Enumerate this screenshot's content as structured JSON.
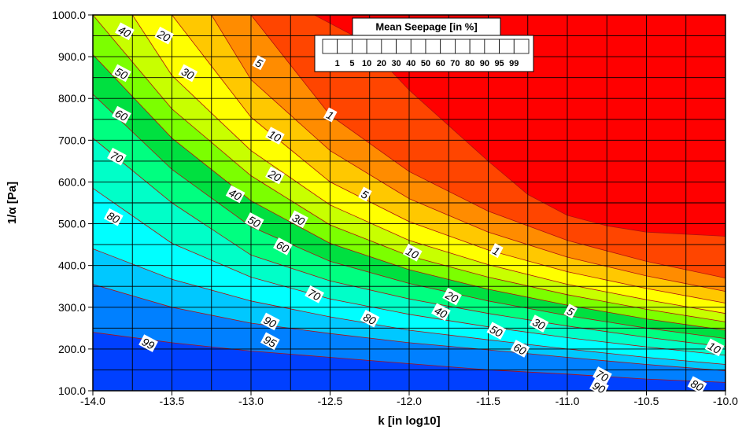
{
  "chart_data": {
    "type": "heatmap",
    "title": "",
    "xlabel": "k  [in log10]",
    "ylabel": "1/α [Pa]",
    "xlim": [
      -14.0,
      -10.0
    ],
    "ylim": [
      100.0,
      1000.0
    ],
    "x_ticks": [
      "-14.0",
      "-13.5",
      "-13.0",
      "-12.5",
      "-12.0",
      "-11.5",
      "-11.0",
      "-10.5",
      "-10.0"
    ],
    "y_ticks": [
      "100.0",
      "200.0",
      "300.0",
      "400.0",
      "500.0",
      "600.0",
      "700.0",
      "800.0",
      "900.0",
      "1000.0"
    ],
    "grid": true,
    "legend": {
      "title": "Mean Seepage [in %]",
      "placement": "top-center",
      "levels": [
        "1",
        "5",
        "10",
        "20",
        "30",
        "40",
        "50",
        "60",
        "70",
        "80",
        "90",
        "95",
        "99"
      ]
    },
    "colors": {
      "above_1": "#ff0000",
      "1_5": "#ff4500",
      "5_10": "#ff8c00",
      "10_20": "#ffc800",
      "20_30": "#ffff00",
      "30_40": "#c8ff00",
      "40_50": "#7cff00",
      "50_60": "#00e040",
      "60_70": "#00ff80",
      "70_80": "#00ffc8",
      "80_90": "#00ffff",
      "90_95": "#00c8ff",
      "95_99": "#0080ff",
      "99_100": "#0040ff",
      "lowest": "#0000e6",
      "contour_line": "#b01010"
    },
    "contours": [
      {
        "level": "99",
        "points": [
          [
            -14.0,
            240
          ],
          [
            -13.5,
            215
          ],
          [
            -13.0,
            195
          ],
          [
            -12.5,
            180
          ],
          [
            -12.0,
            165
          ],
          [
            -11.5,
            150
          ],
          [
            -11.0,
            140
          ],
          [
            -10.5,
            128
          ],
          [
            -10.0,
            120
          ]
        ]
      },
      {
        "level": "95",
        "points": [
          [
            -14.0,
            355
          ],
          [
            -13.5,
            300
          ],
          [
            -13.0,
            262
          ],
          [
            -12.5,
            237
          ],
          [
            -12.0,
            215
          ],
          [
            -11.5,
            198
          ],
          [
            -11.0,
            180
          ],
          [
            -10.5,
            163
          ],
          [
            -10.0,
            148
          ]
        ]
      },
      {
        "level": "90",
        "points": [
          [
            -14.0,
            440
          ],
          [
            -13.5,
            367
          ],
          [
            -13.0,
            315
          ],
          [
            -12.5,
            277
          ],
          [
            -12.0,
            245
          ],
          [
            -11.5,
            222
          ],
          [
            -11.0,
            200
          ],
          [
            -10.5,
            180
          ],
          [
            -10.0,
            163
          ]
        ]
      },
      {
        "level": "80",
        "points": [
          [
            -14.0,
            585
          ],
          [
            -13.5,
            453
          ],
          [
            -13.0,
            372
          ],
          [
            -12.5,
            320
          ],
          [
            -12.0,
            283
          ],
          [
            -11.5,
            253
          ],
          [
            -11.0,
            227
          ],
          [
            -10.5,
            205
          ],
          [
            -10.0,
            185
          ]
        ]
      },
      {
        "level": "70",
        "points": [
          [
            -14.0,
            705
          ],
          [
            -13.5,
            550
          ],
          [
            -13.0,
            425
          ],
          [
            -12.5,
            363
          ],
          [
            -12.0,
            320
          ],
          [
            -11.5,
            285
          ],
          [
            -11.0,
            255
          ],
          [
            -10.5,
            228
          ],
          [
            -10.0,
            205
          ]
        ]
      },
      {
        "level": "60",
        "points": [
          [
            -14.0,
            810
          ],
          [
            -13.5,
            630
          ],
          [
            -13.0,
            493
          ],
          [
            -12.5,
            410
          ],
          [
            -12.0,
            357
          ],
          [
            -11.5,
            315
          ],
          [
            -11.0,
            280
          ],
          [
            -10.5,
            250
          ],
          [
            -10.0,
            225
          ]
        ]
      },
      {
        "level": "50",
        "points": [
          [
            -14.0,
            905
          ],
          [
            -13.5,
            705
          ],
          [
            -13.0,
            555
          ],
          [
            -12.5,
            453
          ],
          [
            -12.0,
            390
          ],
          [
            -11.5,
            343
          ],
          [
            -11.0,
            305
          ],
          [
            -10.5,
            272
          ],
          [
            -10.0,
            245
          ]
        ]
      },
      {
        "level": "40",
        "points": [
          [
            -14.0,
            1000
          ],
          [
            -13.5,
            775
          ],
          [
            -13.0,
            615
          ],
          [
            -12.5,
            497
          ],
          [
            -12.0,
            423
          ],
          [
            -11.5,
            372
          ],
          [
            -11.0,
            330
          ],
          [
            -10.5,
            295
          ],
          [
            -10.0,
            265
          ]
        ]
      },
      {
        "level": "30",
        "points": [
          [
            -13.75,
            1000
          ],
          [
            -13.5,
            855
          ],
          [
            -13.0,
            675
          ],
          [
            -12.5,
            545
          ],
          [
            -12.0,
            460
          ],
          [
            -11.5,
            402
          ],
          [
            -11.0,
            355
          ],
          [
            -10.5,
            318
          ],
          [
            -10.0,
            285
          ]
        ]
      },
      {
        "level": "20",
        "points": [
          [
            -13.5,
            1000
          ],
          [
            -13.0,
            755
          ],
          [
            -12.5,
            600
          ],
          [
            -12.0,
            505
          ],
          [
            -11.5,
            437
          ],
          [
            -11.0,
            385
          ],
          [
            -10.5,
            345
          ],
          [
            -10.0,
            310
          ]
        ]
      },
      {
        "level": "10",
        "points": [
          [
            -13.25,
            1000
          ],
          [
            -13.0,
            845
          ],
          [
            -12.5,
            675
          ],
          [
            -12.0,
            560
          ],
          [
            -11.5,
            480
          ],
          [
            -11.0,
            420
          ],
          [
            -10.5,
            375
          ],
          [
            -10.0,
            338
          ]
        ]
      },
      {
        "level": "5",
        "points": [
          [
            -13.0,
            1000
          ],
          [
            -12.5,
            760
          ],
          [
            -12.0,
            625
          ],
          [
            -11.5,
            530
          ],
          [
            -11.0,
            460
          ],
          [
            -10.5,
            410
          ],
          [
            -10.0,
            370
          ]
        ]
      },
      {
        "level": "1",
        "points": [
          [
            -12.6,
            1000
          ],
          [
            -12.3,
            940
          ],
          [
            -12.0,
            820
          ],
          [
            -11.5,
            650
          ],
          [
            -11.25,
            570
          ],
          [
            -11.0,
            520
          ],
          [
            -10.75,
            495
          ],
          [
            -10.5,
            480
          ],
          [
            -10.0,
            470
          ]
        ]
      }
    ],
    "contour_labels": [
      {
        "text": "40",
        "x": -13.8,
        "y": 960
      },
      {
        "text": "20",
        "x": -13.55,
        "y": 950
      },
      {
        "text": "5",
        "x": -12.95,
        "y": 885
      },
      {
        "text": "30",
        "x": -13.4,
        "y": 860
      },
      {
        "text": "50",
        "x": -13.82,
        "y": 860
      },
      {
        "text": "1",
        "x": -12.5,
        "y": 760
      },
      {
        "text": "60",
        "x": -13.82,
        "y": 760
      },
      {
        "text": "10",
        "x": -12.85,
        "y": 710
      },
      {
        "text": "70",
        "x": -13.85,
        "y": 660
      },
      {
        "text": "20",
        "x": -12.85,
        "y": 615
      },
      {
        "text": "40",
        "x": -13.1,
        "y": 570
      },
      {
        "text": "5",
        "x": -12.28,
        "y": 570
      },
      {
        "text": "80",
        "x": -13.87,
        "y": 515
      },
      {
        "text": "30",
        "x": -12.7,
        "y": 510
      },
      {
        "text": "50",
        "x": -12.98,
        "y": 505
      },
      {
        "text": "60",
        "x": -12.8,
        "y": 445
      },
      {
        "text": "10",
        "x": -11.98,
        "y": 430
      },
      {
        "text": "1",
        "x": -11.45,
        "y": 435
      },
      {
        "text": "70",
        "x": -12.6,
        "y": 330
      },
      {
        "text": "20",
        "x": -11.73,
        "y": 325
      },
      {
        "text": "5",
        "x": -10.98,
        "y": 290
      },
      {
        "text": "40",
        "x": -11.8,
        "y": 288
      },
      {
        "text": "80",
        "x": -12.25,
        "y": 272
      },
      {
        "text": "90",
        "x": -12.88,
        "y": 265
      },
      {
        "text": "30",
        "x": -11.18,
        "y": 260
      },
      {
        "text": "50",
        "x": -11.45,
        "y": 243
      },
      {
        "text": "95",
        "x": -12.88,
        "y": 218
      },
      {
        "text": "99",
        "x": -13.65,
        "y": 213
      },
      {
        "text": "60",
        "x": -11.3,
        "y": 200
      },
      {
        "text": "10",
        "x": -10.07,
        "y": 203
      },
      {
        "text": "70",
        "x": -10.78,
        "y": 136
      },
      {
        "text": "90",
        "x": -10.8,
        "y": 108
      },
      {
        "text": "80",
        "x": -10.18,
        "y": 113
      }
    ]
  }
}
